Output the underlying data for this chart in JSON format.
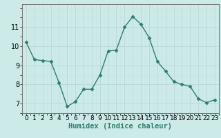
{
  "x": [
    0,
    1,
    2,
    3,
    4,
    5,
    6,
    7,
    8,
    9,
    10,
    11,
    12,
    13,
    14,
    15,
    16,
    17,
    18,
    19,
    20,
    21,
    22,
    23
  ],
  "y": [
    10.2,
    9.3,
    9.25,
    9.2,
    8.1,
    6.85,
    7.1,
    7.75,
    7.75,
    8.5,
    9.75,
    9.8,
    11.0,
    11.55,
    11.15,
    10.45,
    9.2,
    8.7,
    8.15,
    8.0,
    7.9,
    7.25,
    7.05,
    7.2
  ],
  "line_color": "#2e7d6e",
  "marker": "D",
  "marker_size": 2.5,
  "line_width": 1.0,
  "bg_color": "#cceae8",
  "grid_color_major": "#b8d8d5",
  "grid_color_minor": "#c8e4e2",
  "xlabel": "Humidex (Indice chaleur)",
  "xlabel_fontsize": 7.5,
  "xlim": [
    -0.5,
    23.5
  ],
  "ylim": [
    6.5,
    12.2
  ],
  "yticks": [
    7,
    8,
    9,
    10,
    11
  ],
  "ytick_labels": [
    "7",
    "8",
    "9",
    "10",
    "11"
  ],
  "xtick_labels": [
    "0",
    "1",
    "2",
    "3",
    "4",
    "5",
    "6",
    "7",
    "8",
    "9",
    "10",
    "11",
    "12",
    "13",
    "14",
    "15",
    "16",
    "17",
    "18",
    "19",
    "20",
    "21",
    "22",
    "23"
  ],
  "tick_fontsize": 6.5,
  "ytick_fontsize": 7.0
}
